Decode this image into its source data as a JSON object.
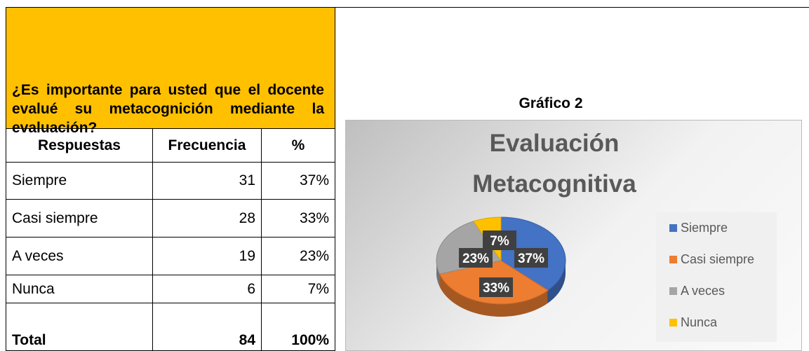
{
  "question": "¿Es importante para usted que el docente evalué su metacognición mediante la evaluación?",
  "table": {
    "header": [
      "Respuestas",
      "Frecuencia",
      "%"
    ],
    "rows": [
      [
        "Siempre",
        "31",
        "37%"
      ],
      [
        "Casi siempre",
        "28",
        "33%"
      ],
      [
        "A veces",
        "19",
        "23%"
      ],
      [
        "Nunca",
        "6",
        "7%"
      ],
      [
        "Total",
        "84",
        "100%"
      ]
    ]
  },
  "caption": "Gráfico 2",
  "chart_data": {
    "type": "pie",
    "title": "Evaluación Metacognitiva",
    "categories": [
      "Siempre",
      "Casi siempre",
      "A veces",
      "Nunca"
    ],
    "values": [
      37,
      33,
      23,
      7
    ],
    "value_labels": [
      "37%",
      "33%",
      "23%",
      "7%"
    ],
    "colors": [
      "#4472c4",
      "#ed7d31",
      "#a5a5a5",
      "#ffc000"
    ],
    "legend": "right"
  }
}
